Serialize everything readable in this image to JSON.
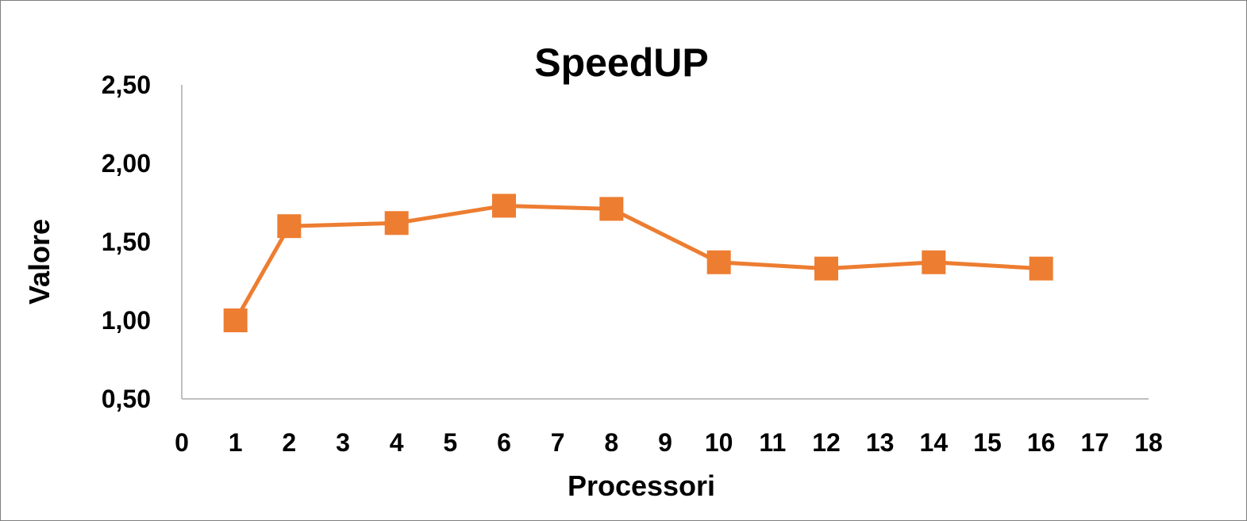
{
  "chart_data": {
    "type": "line",
    "title": "SpeedUP",
    "xlabel": "Processori",
    "ylabel": "Valore",
    "xlim": [
      0,
      18
    ],
    "ylim": [
      0.5,
      2.5
    ],
    "x_ticks": [
      "0",
      "1",
      "2",
      "3",
      "4",
      "5",
      "6",
      "7",
      "8",
      "9",
      "10",
      "11",
      "12",
      "13",
      "14",
      "15",
      "16",
      "17",
      "18"
    ],
    "y_ticks": [
      "0,50",
      "1,00",
      "1,50",
      "2,00",
      "2,50"
    ],
    "series": [
      {
        "color": "#ed7d31",
        "marker": "square",
        "x": [
          1,
          2,
          4,
          6,
          8,
          10,
          12,
          14,
          16
        ],
        "y": [
          1.0,
          1.6,
          1.62,
          1.73,
          1.71,
          1.37,
          1.33,
          1.37,
          1.33
        ]
      }
    ],
    "grid": false,
    "legend": "none"
  }
}
